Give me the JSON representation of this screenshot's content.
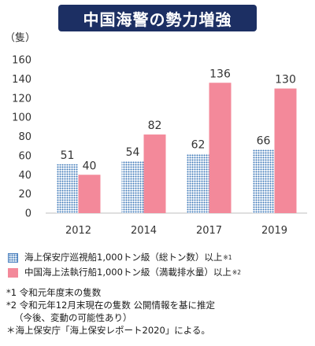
{
  "chart_data": {
    "type": "bar",
    "title": "中国海警の勢力増強",
    "ylabel": "（隻）",
    "categories": [
      "2012",
      "2014",
      "2017",
      "2019"
    ],
    "ylim": [
      0,
      160
    ],
    "yticks": [
      0,
      20,
      40,
      60,
      80,
      100,
      120,
      140,
      160
    ],
    "grid": false,
    "legend_position": "bottom",
    "series": [
      {
        "name": "海上保安庁巡視船1,000トン級（総トン数）以上",
        "note_mark": "※1",
        "color": "#3d78b8",
        "pattern": "dotted",
        "values": [
          51,
          54,
          62,
          66
        ]
      },
      {
        "name": "中国海上法執行船1,000トン級（満載排水量）以上",
        "note_mark": "※2",
        "color": "#f3899a",
        "pattern": "solid",
        "values": [
          40,
          82,
          136,
          130
        ]
      }
    ]
  },
  "notes": {
    "n1": "*1 令和元年度末の隻数",
    "n2": "*2 令和元年12月末現在の隻数 公開情報を基に推定",
    "n2_cont": "（今後、変動の可能性あり）",
    "n3": "＊海上保安庁「海上保安レポート2020」による。"
  }
}
